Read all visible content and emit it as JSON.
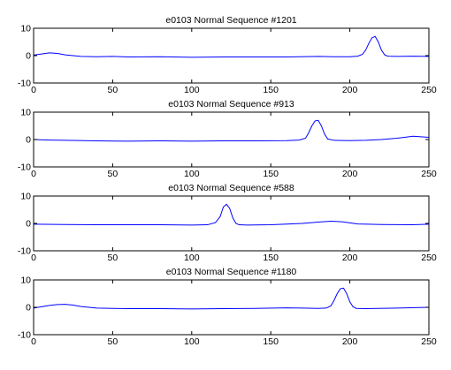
{
  "chart_data": [
    {
      "type": "line",
      "title": "e0103 Normal Sequence #1201",
      "xlim": [
        0,
        250
      ],
      "ylim": [
        -10,
        10
      ],
      "xticks": [
        "0",
        "50",
        "100",
        "150",
        "200",
        "250"
      ],
      "yticks": [
        "10",
        "0",
        "-10"
      ],
      "grid": false,
      "series": [
        {
          "color": "#0000ff",
          "x": [
            0,
            5,
            10,
            15,
            20,
            25,
            30,
            40,
            50,
            60,
            80,
            100,
            120,
            140,
            160,
            180,
            190,
            200,
            205,
            208,
            210,
            212,
            214,
            216,
            218,
            220,
            222,
            224,
            230,
            240,
            250
          ],
          "y": [
            0.2,
            0.6,
            1.0,
            0.8,
            0.3,
            0.0,
            -0.3,
            -0.4,
            -0.3,
            -0.5,
            -0.4,
            -0.6,
            -0.5,
            -0.5,
            -0.5,
            -0.3,
            -0.4,
            -0.4,
            -0.2,
            0.5,
            2.0,
            4.5,
            6.5,
            7.0,
            5.0,
            2.0,
            0.3,
            -0.2,
            -0.3,
            -0.2,
            -0.3
          ]
        }
      ]
    },
    {
      "type": "line",
      "title": "e0103 Normal Sequence #913",
      "xlim": [
        0,
        250
      ],
      "ylim": [
        -10,
        10
      ],
      "xticks": [
        "0",
        "50",
        "100",
        "150",
        "200",
        "250"
      ],
      "yticks": [
        "10",
        "0",
        "-10"
      ],
      "grid": false,
      "series": [
        {
          "color": "#0000ff",
          "x": [
            0,
            10,
            20,
            40,
            60,
            80,
            100,
            120,
            140,
            160,
            168,
            172,
            174,
            176,
            178,
            180,
            182,
            184,
            186,
            190,
            200,
            210,
            220,
            230,
            240,
            245,
            250
          ],
          "y": [
            0.0,
            -0.2,
            -0.3,
            -0.5,
            -0.6,
            -0.5,
            -0.6,
            -0.5,
            -0.5,
            -0.4,
            -0.2,
            0.5,
            2.5,
            5.0,
            6.8,
            7.0,
            5.0,
            2.0,
            0.2,
            -0.3,
            -0.4,
            -0.3,
            0.0,
            0.5,
            1.2,
            1.0,
            0.8
          ]
        }
      ]
    },
    {
      "type": "line",
      "title": "e0103 Normal Sequence #588",
      "xlim": [
        0,
        250
      ],
      "ylim": [
        -10,
        10
      ],
      "xticks": [
        "0",
        "50",
        "100",
        "150",
        "200",
        "250"
      ],
      "yticks": [
        "10",
        "0",
        "-10"
      ],
      "grid": false,
      "series": [
        {
          "color": "#0000ff",
          "x": [
            0,
            20,
            40,
            60,
            80,
            100,
            110,
            115,
            118,
            120,
            122,
            124,
            126,
            128,
            130,
            135,
            150,
            170,
            180,
            188,
            195,
            205,
            220,
            240,
            250
          ],
          "y": [
            -0.3,
            -0.4,
            -0.5,
            -0.5,
            -0.5,
            -0.6,
            -0.5,
            0.3,
            2.5,
            6.0,
            7.0,
            5.5,
            2.0,
            0.0,
            -0.5,
            -0.6,
            -0.5,
            0.0,
            0.5,
            0.8,
            0.6,
            -0.2,
            -0.4,
            -0.5,
            -0.3
          ]
        }
      ]
    },
    {
      "type": "line",
      "title": "e0103 Normal Sequence #1180",
      "xlim": [
        0,
        250
      ],
      "ylim": [
        -10,
        10
      ],
      "xticks": [
        "0",
        "50",
        "100",
        "150",
        "200",
        "250"
      ],
      "yticks": [
        "10",
        "0",
        "-10"
      ],
      "grid": false,
      "series": [
        {
          "color": "#0000ff",
          "x": [
            0,
            5,
            10,
            15,
            20,
            25,
            30,
            40,
            60,
            80,
            100,
            120,
            140,
            160,
            170,
            180,
            185,
            188,
            190,
            192,
            194,
            196,
            198,
            200,
            202,
            204,
            210,
            230,
            250
          ],
          "y": [
            -0.3,
            0.2,
            0.7,
            1.0,
            1.1,
            0.8,
            0.3,
            -0.3,
            -0.5,
            -0.5,
            -0.6,
            -0.5,
            -0.4,
            -0.2,
            -0.3,
            -0.4,
            -0.3,
            0.5,
            2.5,
            5.0,
            6.8,
            7.0,
            5.0,
            2.0,
            0.2,
            -0.4,
            -0.5,
            -0.3,
            0.0
          ]
        }
      ]
    }
  ]
}
